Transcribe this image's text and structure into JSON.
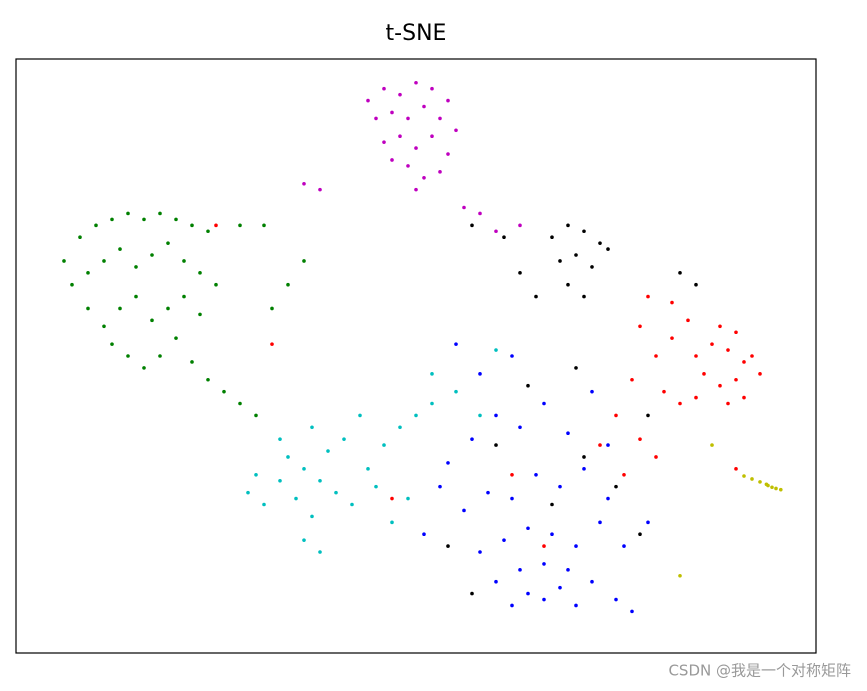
{
  "chart_data": {
    "type": "scatter",
    "title": "t-SNE",
    "watermark": "CSDN @我是一个对称矩阵",
    "xlim": [
      0,
      100
    ],
    "ylim": [
      0,
      100
    ],
    "marker_radius": 1.8,
    "series": [
      {
        "color": "#bf00bf",
        "x": [
          44,
          46,
          48,
          50,
          52,
          54,
          45,
          47,
          49,
          51,
          53,
          55,
          46,
          48,
          50,
          52,
          54,
          49,
          51,
          47,
          53,
          36,
          38,
          58,
          60,
          63,
          56,
          50
        ],
        "y": [
          93,
          95,
          94,
          96,
          95,
          93,
          90,
          91,
          90,
          92,
          90,
          88,
          86,
          87,
          85,
          87,
          84,
          82,
          80,
          83,
          81,
          79,
          78,
          74,
          71,
          72,
          75,
          78
        ]
      },
      {
        "color": "#008000",
        "x": [
          6,
          8,
          10,
          12,
          14,
          16,
          18,
          20,
          22,
          24,
          28,
          31,
          7,
          9,
          11,
          13,
          15,
          17,
          19,
          21,
          23,
          25,
          9,
          11,
          13,
          15,
          17,
          19,
          21,
          23,
          12,
          14,
          16,
          18,
          20,
          22,
          24,
          26,
          28,
          30,
          34,
          32,
          36
        ],
        "y": [
          66,
          70,
          72,
          73,
          74,
          73,
          74,
          73,
          72,
          71,
          72,
          72,
          62,
          64,
          66,
          68,
          65,
          67,
          69,
          66,
          64,
          62,
          58,
          55,
          58,
          60,
          56,
          58,
          60,
          57,
          52,
          50,
          48,
          50,
          53,
          49,
          46,
          44,
          42,
          40,
          62,
          58,
          66
        ]
      },
      {
        "color": "#00bfbf",
        "x": [
          29,
          31,
          33,
          35,
          37,
          30,
          34,
          36,
          38,
          40,
          42,
          44,
          46,
          48,
          50,
          52,
          41,
          43,
          39,
          37,
          45,
          47,
          49,
          36,
          38,
          55,
          58,
          33,
          60,
          52
        ],
        "y": [
          27,
          25,
          29,
          26,
          23,
          30,
          33,
          31,
          29,
          27,
          25,
          31,
          35,
          38,
          40,
          42,
          36,
          40,
          34,
          38,
          28,
          22,
          26,
          19,
          17,
          44,
          40,
          36,
          51,
          47
        ]
      },
      {
        "color": "#0000ff",
        "x": [
          62,
          64,
          66,
          68,
          70,
          60,
          63,
          66,
          69,
          72,
          75,
          77,
          58,
          61,
          64,
          67,
          70,
          73,
          56,
          59,
          62,
          65,
          68,
          71,
          74,
          54,
          57,
          60,
          63,
          66,
          69,
          72,
          58,
          62,
          55,
          53,
          51,
          76,
          79,
          74
        ],
        "y": [
          8,
          10,
          9,
          11,
          8,
          12,
          14,
          15,
          14,
          12,
          9,
          7,
          17,
          19,
          21,
          20,
          18,
          22,
          24,
          27,
          26,
          30,
          28,
          31,
          26,
          32,
          36,
          40,
          38,
          42,
          37,
          44,
          47,
          50,
          52,
          28,
          20,
          18,
          22,
          35
        ]
      },
      {
        "color": "#000000",
        "x": [
          67,
          69,
          71,
          73,
          68,
          70,
          72,
          74,
          69,
          71,
          65,
          63,
          61,
          57,
          83,
          85,
          60,
          64,
          67,
          71,
          75,
          78,
          57,
          54,
          70,
          79
        ],
        "y": [
          70,
          72,
          71,
          69,
          66,
          67,
          65,
          68,
          62,
          60,
          60,
          64,
          70,
          72,
          64,
          62,
          35,
          45,
          25,
          33,
          28,
          20,
          10,
          18,
          48,
          40
        ]
      },
      {
        "color": "#ff0000",
        "x": [
          85,
          87,
          89,
          91,
          93,
          86,
          88,
          90,
          92,
          88,
          90,
          84,
          82,
          80,
          78,
          81,
          83,
          85,
          89,
          91,
          79,
          82,
          77,
          75,
          73,
          76,
          78,
          80,
          62,
          66,
          47,
          90,
          25,
          32
        ],
        "y": [
          50,
          52,
          51,
          49,
          47,
          47,
          45,
          46,
          50,
          55,
          54,
          56,
          53,
          50,
          55,
          44,
          42,
          43,
          42,
          43,
          60,
          59,
          46,
          40,
          35,
          30,
          36,
          33,
          30,
          18,
          26,
          31,
          72,
          52
        ]
      },
      {
        "color": "#bfbf00",
        "x": [
          91,
          92,
          93,
          93.8,
          94.5,
          95,
          95.6,
          94,
          87,
          83
        ],
        "y": [
          29.8,
          29.3,
          28.8,
          28.4,
          27.9,
          27.7,
          27.5,
          28.2,
          35,
          13
        ]
      }
    ]
  }
}
